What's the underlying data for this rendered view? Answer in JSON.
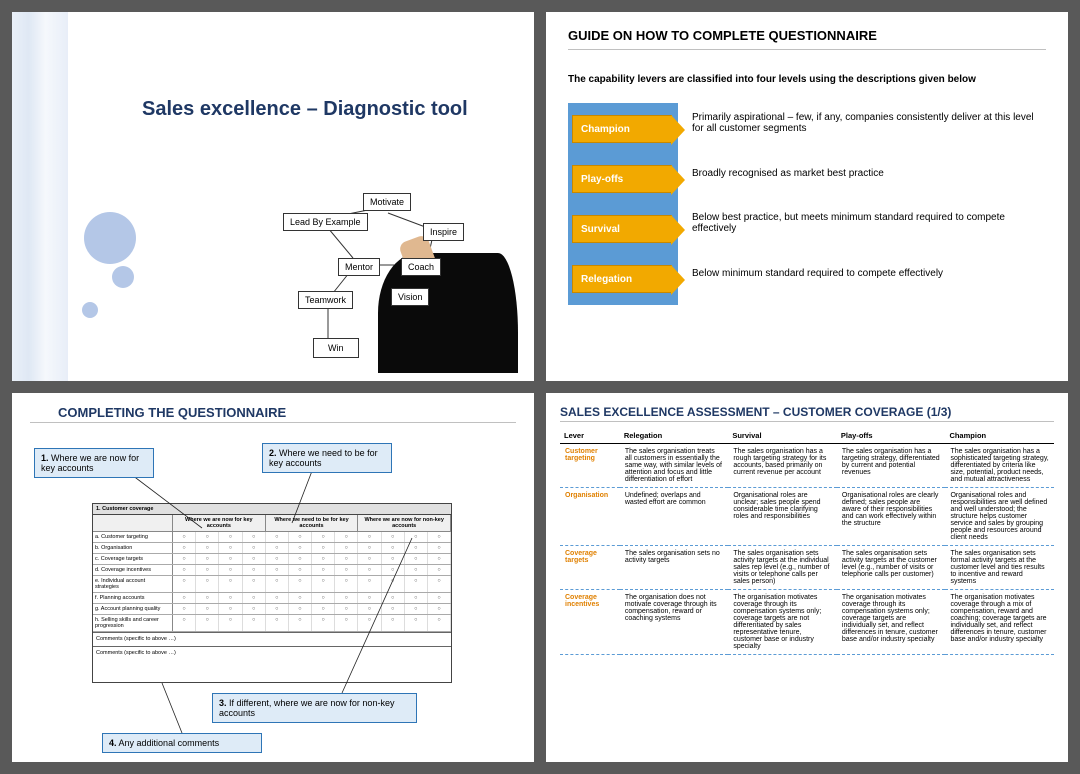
{
  "slide1": {
    "title": "Sales excellence – Diagnostic tool",
    "diagram_labels": {
      "lead": "Lead By Example",
      "motivate": "Motivate",
      "inspire": "Inspire",
      "mentor": "Mentor",
      "coach": "Coach",
      "teamwork": "Teamwork",
      "vision": "Vision",
      "win": "Win"
    }
  },
  "slide2": {
    "title": "GUIDE ON HOW TO COMPLETE QUESTIONNAIRE",
    "subtitle": "The capability levers are classified into four levels using the descriptions given below",
    "levels": [
      {
        "name": "Champion",
        "desc": "Primarily aspirational – few, if any, companies consistently deliver at this level for all customer segments"
      },
      {
        "name": "Play-offs",
        "desc": "Broadly recognised as market best practice"
      },
      {
        "name": "Survival",
        "desc": "Below best practice, but meets minimum standard required to compete effectively"
      },
      {
        "name": "Relegation",
        "desc": "Below minimum standard required to compete effectively"
      }
    ],
    "colors": {
      "rail": "#5b9bd5",
      "arrow": "#f2a900"
    }
  },
  "slide3": {
    "title": "COMPLETING THE QUESTIONNAIRE",
    "callouts": {
      "c1": {
        "num": "1.",
        "text": "Where we are now for key accounts"
      },
      "c2": {
        "num": "2.",
        "text": "Where we need to be for key accounts"
      },
      "c3": {
        "num": "3.",
        "text": "If different, where we are now for non-key accounts"
      },
      "c4": {
        "num": "4.",
        "text": "Any additional comments"
      }
    },
    "table": {
      "section": "1. Customer coverage",
      "group_headers": [
        "Where we are now for key accounts",
        "Where we need to be for key accounts",
        "Where we are now for non-key accounts"
      ],
      "rows": [
        "a. Customer targeting",
        "b. Organisation",
        "c. Coverage targets",
        "d. Coverage incentives",
        "e. Individual account strategies",
        "f. Planning accounts",
        "g. Account planning quality",
        "h. Selling skills and career progression"
      ],
      "footer1": "Comments (specific to above …)",
      "footer2": "Comments (specific to above …)"
    }
  },
  "slide4": {
    "title": "SALES EXCELLENCE ASSESSMENT – CUSTOMER COVERAGE (1/3)",
    "headers": [
      "Lever",
      "Relegation",
      "Survival",
      "Play-offs",
      "Champion"
    ],
    "rows": [
      {
        "lever": "Customer targeting",
        "cells": [
          "The sales organisation treats all customers in essentially the same way, with similar levels of attention and focus and little differentiation of effort",
          "The sales organisation has a rough targeting strategy for its accounts, based primarily on current revenue per account",
          "The sales organisation has a targeting strategy, differentiated by current and potential revenues",
          "The sales organisation has a sophisticated targeting strategy, differentiated by criteria like size, potential, product needs, and mutual attractiveness"
        ]
      },
      {
        "lever": "Organisation",
        "cells": [
          "Undefined; overlaps and wasted effort are common",
          "Organisational roles are unclear; sales people spend considerable time clarifying roles and responsibilities",
          "Organisational roles are clearly defined; sales people are aware of their responsibilities and can work effectively within the structure",
          "Organisational roles and responsibilities are well defined and well understood; the structure helps customer service and sales by grouping people and resources around client needs"
        ]
      },
      {
        "lever": "Coverage targets",
        "cells": [
          "The sales organisation sets no activity targets",
          "The sales organisation sets activity targets at the individual sales rep level (e.g., number of visits or telephone calls per sales person)",
          "The sales organisation sets activity targets at the customer level (e.g., number of visits or telephone calls per customer)",
          "The sales organisation sets formal activity targets at the customer level and ties results to incentive and reward systems"
        ]
      },
      {
        "lever": "Coverage incentives",
        "cells": [
          "The organisation does not motivate coverage through its compensation, reward or coaching systems",
          "The organisation motivates coverage through its compensation systems only; coverage targets are not differentiated by sales representative tenure, customer base or industry specialty",
          "The organisation motivates coverage through its compensation systems only; coverage targets are individually set, and reflect differences in tenure, customer base and/or industry specialty",
          "The organisation motivates coverage through a mix of compensation, reward and coaching; coverage targets are individually set, and reflect differences in tenure, customer base and/or industry specialty"
        ]
      }
    ]
  }
}
